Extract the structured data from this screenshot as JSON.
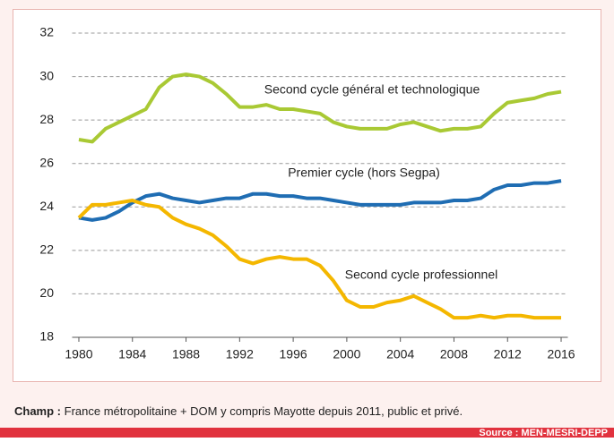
{
  "chart_data": {
    "type": "line",
    "x": [
      1980,
      1981,
      1982,
      1983,
      1984,
      1985,
      1986,
      1987,
      1988,
      1989,
      1990,
      1991,
      1992,
      1993,
      1994,
      1995,
      1996,
      1997,
      1998,
      1999,
      2000,
      2001,
      2002,
      2003,
      2004,
      2005,
      2006,
      2007,
      2008,
      2009,
      2010,
      2011,
      2012,
      2013,
      2014,
      2015,
      2016
    ],
    "series": [
      {
        "name": "Second cycle général et technologique",
        "color": "#a9c934",
        "values": [
          27.1,
          27.0,
          27.6,
          27.9,
          28.2,
          28.5,
          29.5,
          30.0,
          30.1,
          30.0,
          29.7,
          29.2,
          28.6,
          28.6,
          28.7,
          28.5,
          28.5,
          28.4,
          28.3,
          27.9,
          27.7,
          27.6,
          27.6,
          27.6,
          27.8,
          27.9,
          27.7,
          27.5,
          27.6,
          27.6,
          27.7,
          28.3,
          28.8,
          28.9,
          29.0,
          29.2,
          29.3
        ]
      },
      {
        "name": "Premier cycle (hors Segpa)",
        "color": "#1f6db3",
        "values": [
          23.5,
          23.4,
          23.5,
          23.8,
          24.2,
          24.5,
          24.6,
          24.4,
          24.3,
          24.2,
          24.3,
          24.4,
          24.4,
          24.6,
          24.6,
          24.5,
          24.5,
          24.4,
          24.4,
          24.3,
          24.2,
          24.1,
          24.1,
          24.1,
          24.1,
          24.2,
          24.2,
          24.2,
          24.3,
          24.3,
          24.4,
          24.8,
          25.0,
          25.0,
          25.1,
          25.1,
          25.2
        ]
      },
      {
        "name": "Second cycle professionnel",
        "color": "#f4b700",
        "values": [
          23.5,
          24.1,
          24.1,
          24.2,
          24.3,
          24.1,
          24.0,
          23.5,
          23.2,
          23.0,
          22.7,
          22.2,
          21.6,
          21.4,
          21.6,
          21.7,
          21.6,
          21.6,
          21.3,
          20.6,
          19.7,
          19.4,
          19.4,
          19.6,
          19.7,
          19.9,
          19.6,
          19.3,
          18.9,
          18.9,
          19.0,
          18.9,
          19.0,
          19.0,
          18.9,
          18.9,
          18.9
        ]
      }
    ],
    "xlim": [
      1979.5,
      2016.5
    ],
    "xticks": [
      1980,
      1984,
      1988,
      1992,
      1996,
      2000,
      2004,
      2008,
      2012,
      2016
    ],
    "ylim": [
      18,
      32
    ],
    "yticks": [
      18,
      20,
      22,
      24,
      26,
      28,
      30,
      32
    ],
    "grid": true,
    "note_label": "Champ :",
    "note": "France métropolitaine + DOM y compris Mayotte depuis 2011, public et privé.",
    "source": "Source : MEN-MESRI-DEPP"
  }
}
